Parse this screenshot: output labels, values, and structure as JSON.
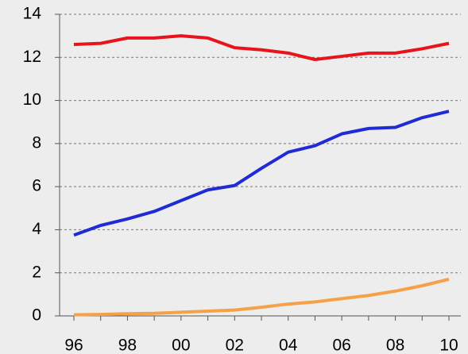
{
  "chart_data": {
    "type": "line",
    "categories": [
      "96",
      null,
      "98",
      null,
      "00",
      null,
      "02",
      null,
      "04",
      null,
      "06",
      null,
      "08",
      null,
      "10"
    ],
    "series": [
      {
        "color": "#e8141b",
        "values": [
          12.6,
          12.65,
          12.9,
          12.9,
          13.0,
          12.9,
          12.45,
          12.35,
          12.2,
          11.9,
          12.05,
          12.2,
          12.2,
          12.4,
          12.65
        ]
      },
      {
        "color": "#1f2bd4",
        "values": [
          3.75,
          4.2,
          4.5,
          4.85,
          5.35,
          5.85,
          6.05,
          6.85,
          7.6,
          7.9,
          8.45,
          8.7,
          8.75,
          9.2,
          9.5
        ]
      },
      {
        "color": "#f6a04a",
        "values": [
          0.05,
          0.07,
          0.1,
          0.12,
          0.17,
          0.22,
          0.27,
          0.4,
          0.55,
          0.65,
          0.8,
          0.95,
          1.15,
          1.4,
          1.7
        ]
      }
    ],
    "ylim": [
      0,
      14
    ],
    "yticks": [
      0,
      2,
      4,
      6,
      8,
      10,
      12,
      14
    ],
    "grid": true
  }
}
